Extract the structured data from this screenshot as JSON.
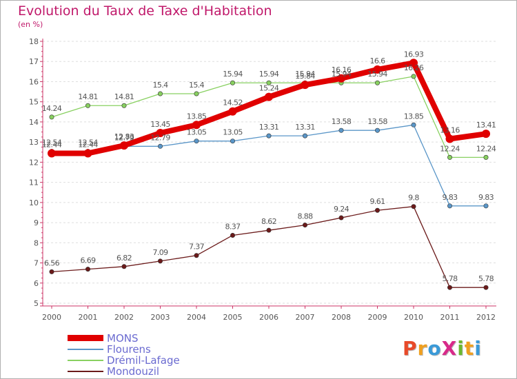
{
  "chart_data": {
    "type": "line",
    "title": "Evolution du Taux de Taxe d'Habitation",
    "subtitle": "(en %)",
    "xlabel": "",
    "ylabel": "",
    "x": [
      "2000",
      "2001",
      "2002",
      "2003",
      "2004",
      "2005",
      "2006",
      "2007",
      "2008",
      "2009",
      "2010",
      "2011",
      "2012"
    ],
    "ylim": [
      5,
      18
    ],
    "yticks": [
      "5",
      "6",
      "7",
      "8",
      "9",
      "10",
      "11",
      "12",
      "13",
      "14",
      "15",
      "16",
      "17",
      "18"
    ],
    "grid": "horizontal dashed",
    "legend_position": "bottom-left",
    "series": [
      {
        "name": "Mondouzil",
        "color": "#6b1a1a",
        "values": [
          6.56,
          6.69,
          6.82,
          7.09,
          7.37,
          8.37,
          8.62,
          8.88,
          9.24,
          9.61,
          9.8,
          5.78,
          5.78
        ],
        "labels": [
          "6.56",
          "6.69",
          "6.82",
          "7.09",
          "7.37",
          "8.37",
          "8.62",
          "8.88",
          "9.24",
          "9.61",
          "9.8",
          "5.78",
          "5.78"
        ]
      },
      {
        "name": "Flourens",
        "color": "#5a96c8",
        "values": [
          12.54,
          12.54,
          12.79,
          12.79,
          13.05,
          13.05,
          13.31,
          13.31,
          13.58,
          13.58,
          13.85,
          9.83,
          9.83
        ],
        "labels": [
          "12.54",
          "12.54",
          "12.79",
          "12.79",
          "13.05",
          "13.05",
          "13.31",
          "13.31",
          "13.58",
          "13.58",
          "13.85",
          "9.83",
          "9.83"
        ]
      },
      {
        "name": "Drémil-Lafage",
        "color": "#88d060",
        "values": [
          14.24,
          14.81,
          14.81,
          15.4,
          15.4,
          15.94,
          15.94,
          15.94,
          15.94,
          15.94,
          16.26,
          12.24,
          12.24
        ],
        "labels": [
          "14.24",
          "14.81",
          "14.81",
          "15.4",
          "15.4",
          "15.94",
          "15.94",
          "15.94",
          "15.94",
          "15.94",
          "16.26",
          "12.24",
          "12.24"
        ]
      },
      {
        "name": "MONS",
        "color": "#e00000",
        "values": [
          12.44,
          12.44,
          12.83,
          13.45,
          13.85,
          14.52,
          15.24,
          15.84,
          16.16,
          16.6,
          16.93,
          13.16,
          13.41
        ],
        "labels": [
          "12.44",
          "12.44",
          "12.83",
          "13.45",
          "13.85",
          "14.52",
          "15.24",
          "15.84",
          "16.16",
          "16.6",
          "16.93",
          "13.16",
          "13.41"
        ]
      }
    ]
  },
  "legend": {
    "items": [
      {
        "label": "MONS",
        "color": "#e00000"
      },
      {
        "label": "Flourens",
        "color": "#5a96c8"
      },
      {
        "label": "Drémil-Lafage",
        "color": "#88d060"
      },
      {
        "label": "Mondouzil",
        "color": "#6b1a1a"
      }
    ]
  },
  "logo": {
    "text": "ProXiti",
    "colors": [
      "#e84a2a",
      "#f0a020",
      "#3a9ad8",
      "#d82a8a",
      "#6ab830",
      "#f0a020",
      "#3a9ad8"
    ]
  }
}
